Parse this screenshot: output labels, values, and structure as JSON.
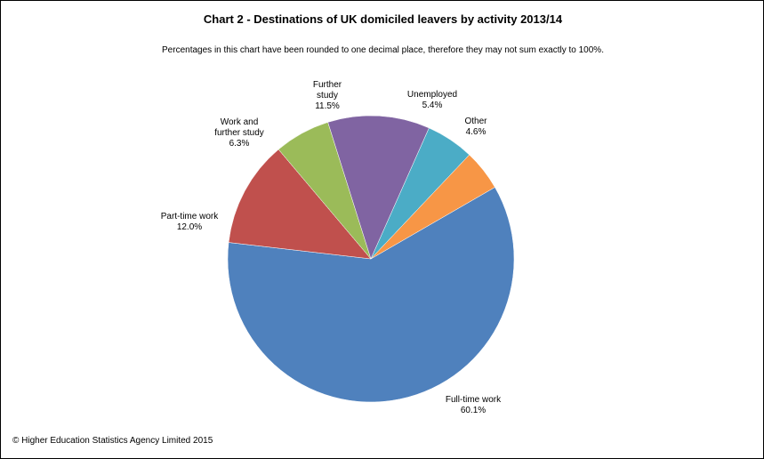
{
  "chart_data": {
    "type": "pie",
    "title": "Chart 2 - Destinations  of UK domiciled leavers by activity 2013/14",
    "subtitle": "Percentages in this chart have been rounded to one decimal place, therefore they may not sum exactly to 100%.",
    "legend": "none (data labels outside slices)",
    "slices": [
      {
        "label": "Full-time  work",
        "label_lines": [
          "Full-time  work"
        ],
        "value": 60.1,
        "value_label": "60.1%",
        "color": "#4F81BD"
      },
      {
        "label": "Part-time  work",
        "label_lines": [
          "Part-time  work"
        ],
        "value": 12.0,
        "value_label": "12.0%",
        "color": "#C0504D"
      },
      {
        "label": "Work and further study",
        "label_lines": [
          "Work and",
          "further study"
        ],
        "value": 6.3,
        "value_label": "6.3%",
        "color": "#9BBB59"
      },
      {
        "label": "Further study",
        "label_lines": [
          "Further",
          "study"
        ],
        "value": 11.5,
        "value_label": "11.5%",
        "color": "#8064A2"
      },
      {
        "label": "Unemployed",
        "label_lines": [
          "Unemployed"
        ],
        "value": 5.4,
        "value_label": "5.4%",
        "color": "#4BACC6"
      },
      {
        "label": "Other",
        "label_lines": [
          "Other"
        ],
        "value": 4.6,
        "value_label": "4.6%",
        "color": "#F79646"
      }
    ]
  },
  "footer": "© Higher Education  Statistics Agency Limited 2015"
}
